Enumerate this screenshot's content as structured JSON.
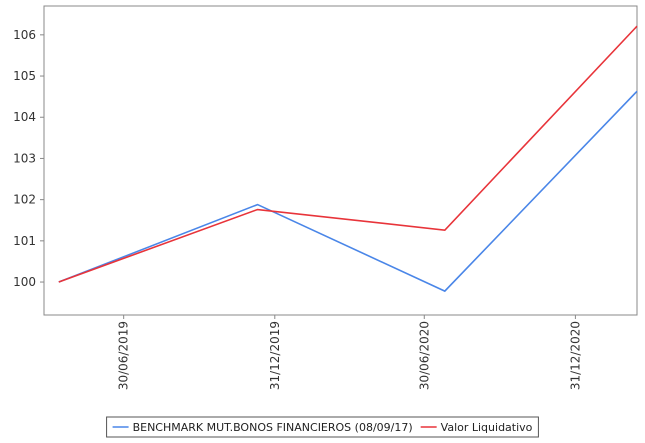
{
  "chart_data": {
    "type": "line",
    "x": [
      "2019-04-12",
      "2019-12-10",
      "2020-07-25",
      "2021-03-16"
    ],
    "xlim": [
      "2019-03-25",
      "2021-03-16"
    ],
    "xticks": [
      {
        "value": "2019-06-30",
        "label": "30/06/2019"
      },
      {
        "value": "2019-12-31",
        "label": "31/12/2019"
      },
      {
        "value": "2020-06-30",
        "label": "30/06/2020"
      },
      {
        "value": "2020-12-31",
        "label": "31/12/2020"
      }
    ],
    "ylim": [
      99.2,
      106.7
    ],
    "yticks": [
      100,
      101,
      102,
      103,
      104,
      105,
      106
    ],
    "grid": false,
    "legend": "bottom",
    "series": [
      {
        "name": "BENCHMARK MUT.BONOS FINANCIEROS (08/09/17)",
        "color": "#4a86e8",
        "values": [
          100,
          101.88,
          99.78,
          104.63
        ]
      },
      {
        "name": "Valor Liquidativo",
        "color": "#e8343a",
        "values": [
          100,
          101.76,
          101.26,
          106.21
        ]
      }
    ]
  }
}
